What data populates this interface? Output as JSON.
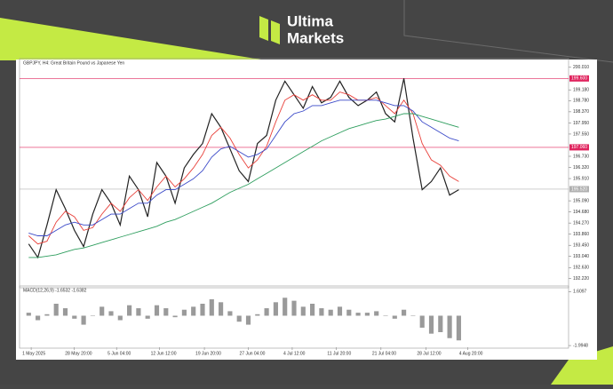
{
  "brand": {
    "line1": "Ultima",
    "line2": "Markets"
  },
  "chart_data": [
    {
      "type": "line",
      "title": "GBPJPY, H4:  Great Britain Pound vs Japanese Yen",
      "xlim": [
        -1,
        59
      ],
      "xticks": [
        {
          "value": 0.27,
          "label": "1 May 2025"
        },
        {
          "value": 4.95,
          "label": "28 May 20:00"
        },
        {
          "value": 9.6,
          "label": "5 Jun 04:00"
        },
        {
          "value": 14.3,
          "label": "12 Jun 12:00"
        },
        {
          "value": 19.2,
          "label": "19 Jun 20:00"
        },
        {
          "value": 24.0,
          "label": "27 Jun 04:00"
        },
        {
          "value": 28.8,
          "label": "4 Jul 12:00"
        },
        {
          "value": 33.6,
          "label": "11 Jul 20:00"
        },
        {
          "value": 38.5,
          "label": "21 Jul 04:00"
        },
        {
          "value": 43.4,
          "label": "28 Jul 12:00"
        },
        {
          "value": 48.0,
          "label": "4 Aug 20:00"
        }
      ],
      "ylim": [
        191.95,
        200.2
      ],
      "yticks": [
        {
          "value": 200.01,
          "label": "200.010"
        },
        {
          "value": 199.18,
          "label": "199.180"
        },
        {
          "value": 198.78,
          "label": "198.780"
        },
        {
          "value": 198.37,
          "label": "198.370"
        },
        {
          "value": 197.95,
          "label": "197.950"
        },
        {
          "value": 197.55,
          "label": "197.550"
        },
        {
          "value": 196.73,
          "label": "196.730"
        },
        {
          "value": 196.32,
          "label": "196.320"
        },
        {
          "value": 195.91,
          "label": "195.910"
        },
        {
          "value": 195.09,
          "label": "195.090"
        },
        {
          "value": 194.68,
          "label": "194.680"
        },
        {
          "value": 194.27,
          "label": "194.270"
        },
        {
          "value": 193.86,
          "label": "193.860"
        },
        {
          "value": 193.45,
          "label": "193.450"
        },
        {
          "value": 193.04,
          "label": "193.040"
        },
        {
          "value": 192.63,
          "label": "192.630"
        },
        {
          "value": 192.22,
          "label": "192.220"
        }
      ],
      "hlines": [
        {
          "value": 199.6,
          "label": "199.600",
          "color": "#e0245e"
        },
        {
          "value": 197.06,
          "label": "197.060",
          "color": "#e0245e"
        },
        {
          "value": 195.52,
          "label": "195.520",
          "color": "#b0b0b0"
        }
      ],
      "series": [
        {
          "color": "#222222",
          "values": [
            193.5,
            193.0,
            194.2,
            195.5,
            194.8,
            194.0,
            193.4,
            194.6,
            195.5,
            195.0,
            194.2,
            196.0,
            195.5,
            194.5,
            196.5,
            196.0,
            195.0,
            196.3,
            196.8,
            197.2,
            198.3,
            197.8,
            197.0,
            196.2,
            195.8,
            197.2,
            197.5,
            198.8,
            199.5,
            199.0,
            198.5,
            199.3,
            198.7,
            198.9,
            199.5,
            198.9,
            198.6,
            198.8,
            199.1,
            198.3,
            198.0,
            199.6,
            197.4,
            195.5,
            195.8,
            196.3,
            195.3,
            195.5
          ]
        },
        {
          "color": "#e8403a",
          "values": [
            193.8,
            193.5,
            193.6,
            194.3,
            194.7,
            194.5,
            194.0,
            194.1,
            194.6,
            195.0,
            194.7,
            195.2,
            195.5,
            195.1,
            195.6,
            196.0,
            195.6,
            195.9,
            196.3,
            196.8,
            197.5,
            197.8,
            197.4,
            196.8,
            196.3,
            196.6,
            197.1,
            198.0,
            198.8,
            199.0,
            198.8,
            199.0,
            198.8,
            198.8,
            199.1,
            199.0,
            198.8,
            198.8,
            198.9,
            198.6,
            198.3,
            198.8,
            198.3,
            197.2,
            196.6,
            196.4,
            196.0,
            195.8
          ]
        },
        {
          "color": "#3a49c8",
          "values": [
            193.9,
            193.8,
            193.8,
            194.0,
            194.2,
            194.3,
            194.2,
            194.2,
            194.4,
            194.6,
            194.6,
            194.8,
            195.0,
            195.0,
            195.3,
            195.5,
            195.5,
            195.7,
            195.9,
            196.2,
            196.7,
            197.0,
            197.1,
            196.9,
            196.7,
            196.8,
            197.0,
            197.5,
            198.0,
            198.3,
            198.4,
            198.6,
            198.6,
            198.7,
            198.8,
            198.8,
            198.8,
            198.8,
            198.8,
            198.7,
            198.6,
            198.6,
            198.4,
            198.0,
            197.8,
            197.6,
            197.4,
            197.3
          ]
        },
        {
          "color": "#2e9e5e",
          "values": [
            193.0,
            193.0,
            193.05,
            193.1,
            193.2,
            193.3,
            193.35,
            193.45,
            193.55,
            193.65,
            193.75,
            193.85,
            193.95,
            194.05,
            194.15,
            194.3,
            194.4,
            194.55,
            194.7,
            194.85,
            195.0,
            195.2,
            195.4,
            195.55,
            195.7,
            195.9,
            196.1,
            196.3,
            196.5,
            196.7,
            196.9,
            197.1,
            197.3,
            197.45,
            197.6,
            197.75,
            197.85,
            197.95,
            198.05,
            198.1,
            198.2,
            198.3,
            198.3,
            198.2,
            198.1,
            198.0,
            197.9,
            197.8
          ]
        }
      ]
    },
    {
      "type": "bar",
      "title": "MACD(12,26,9) -1.6532 -1.6382",
      "xlim": [
        -1,
        59
      ],
      "ylim": [
        -2.05,
        1.75
      ],
      "yticks": [
        1.6097,
        -1.9948
      ],
      "color": "#9a9a9a",
      "values": [
        0.2,
        -0.3,
        0.1,
        0.8,
        0.5,
        -0.2,
        -0.6,
        0.0,
        0.6,
        0.3,
        -0.3,
        0.7,
        0.5,
        -0.2,
        0.7,
        0.5,
        -0.1,
        0.4,
        0.6,
        0.8,
        1.1,
        0.9,
        0.3,
        -0.4,
        -0.6,
        0.1,
        0.5,
        0.9,
        1.2,
        1.0,
        0.6,
        0.8,
        0.5,
        0.4,
        0.6,
        0.4,
        0.2,
        0.2,
        0.3,
        0.0,
        -0.2,
        0.4,
        0.0,
        -0.8,
        -1.2,
        -1.1,
        -1.5,
        -1.65
      ]
    }
  ]
}
